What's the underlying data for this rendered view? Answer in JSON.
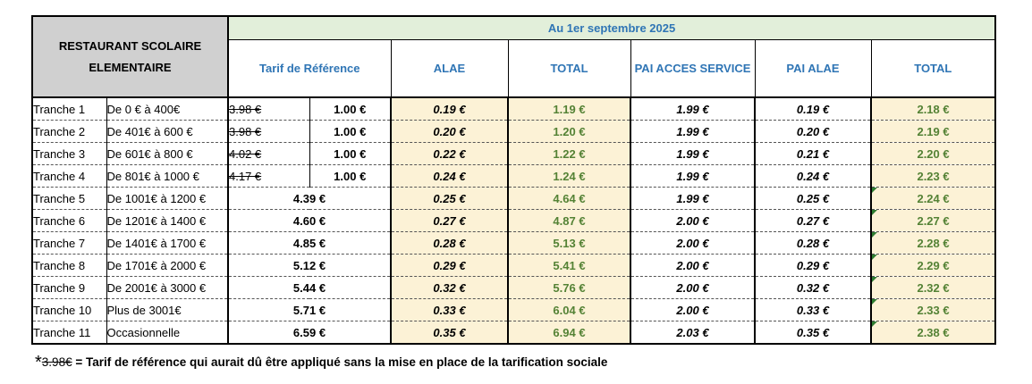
{
  "header": {
    "title_line1": "RESTAURANT SCOLAIRE",
    "title_line2": "ELEMENTAIRE",
    "date": "Au 1er septembre 2025",
    "columns": [
      "Tarif de Référence",
      "ALAE",
      "TOTAL",
      "PAI ACCES SERVICE",
      "PAI ALAE",
      "TOTAL"
    ]
  },
  "rows": [
    {
      "tranche": "Tranche 1",
      "range": "De 0 € à 400€",
      "old": "3.98 €",
      "ref": "1.00 €",
      "alae": "0.19 €",
      "total": "1.19 €",
      "pai": "1.99 €",
      "pai_alae": "0.19 €",
      "total2": "2.18 €"
    },
    {
      "tranche": "Tranche 2",
      "range": "De 401€ à 600 €",
      "old": "3.98 €",
      "ref": "1.00 €",
      "alae": "0.20 €",
      "total": "1.20 €",
      "pai": "1.99 €",
      "pai_alae": "0.20 €",
      "total2": "2.19 €"
    },
    {
      "tranche": "Tranche 3",
      "range": "De 601€ à 800 €",
      "old": "4.02 €",
      "ref": "1.00 €",
      "alae": "0.22 €",
      "total": "1.22 €",
      "pai": "1.99 €",
      "pai_alae": "0.21 €",
      "total2": "2.20 €"
    },
    {
      "tranche": "Tranche 4",
      "range": "De 801€ à 1000 €",
      "old": "4.17 €",
      "ref": "1.00 €",
      "alae": "0.24 €",
      "total": "1.24 €",
      "pai": "1.99 €",
      "pai_alae": "0.24 €",
      "total2": "2.23 €"
    },
    {
      "tranche": "Tranche 5",
      "range": "De 1001€ à 1200 €",
      "ref": "4.39 €",
      "alae": "0.25 €",
      "total": "4.64 €",
      "pai": "1.99 €",
      "pai_alae": "0.25 €",
      "total2": "2.24 €"
    },
    {
      "tranche": "Tranche 6",
      "range": "De 1201€ à 1400 €",
      "ref": "4.60 €",
      "alae": "0.27 €",
      "total": "4.87 €",
      "pai": "2.00 €",
      "pai_alae": "0.27 €",
      "total2": "2.27 €"
    },
    {
      "tranche": "Tranche 7",
      "range": "De 1401€ à 1700 €",
      "ref": "4.85 €",
      "alae": "0.28 €",
      "total": "5.13 €",
      "pai": "2.00 €",
      "pai_alae": "0.28 €",
      "total2": "2.28 €"
    },
    {
      "tranche": "Tranche 8",
      "range": "De 1701€ à 2000 €",
      "ref": "5.12 €",
      "alae": "0.29 €",
      "total": "5.41 €",
      "pai": "2.00 €",
      "pai_alae": "0.29 €",
      "total2": "2.29 €"
    },
    {
      "tranche": "Tranche 9",
      "range": "De 2001€ à 3000 €",
      "ref": "5.44 €",
      "alae": "0.32 €",
      "total": "5.76 €",
      "pai": "2.00 €",
      "pai_alae": "0.32 €",
      "total2": "2.32 €"
    },
    {
      "tranche": "Tranche 10",
      "range": "Plus de 3001€",
      "ref": "5.71 €",
      "alae": "0.33 €",
      "total": "6.04 €",
      "pai": "2.00 €",
      "pai_alae": "0.33 €",
      "total2": "2.33 €"
    },
    {
      "tranche": "Tranche 11",
      "range": "Occasionnelle",
      "ref": "6.59 €",
      "alae": "0.35 €",
      "total": "6.94 €",
      "pai": "2.03 €",
      "pai_alae": "0.35 €",
      "total2": "2.38 €"
    }
  ],
  "note": {
    "star": "*",
    "strike": "3.98€",
    "text": " = Tarif de référence qui aurait dû être appliqué sans la mise en place de la tarification sociale"
  },
  "colors": {
    "header_gray": "#d0d0d0",
    "date_bg": "#e2efda",
    "header_text_blue": "#2f75b5",
    "highlight_bg": "#fcf2d6",
    "total_green": "#548235"
  }
}
